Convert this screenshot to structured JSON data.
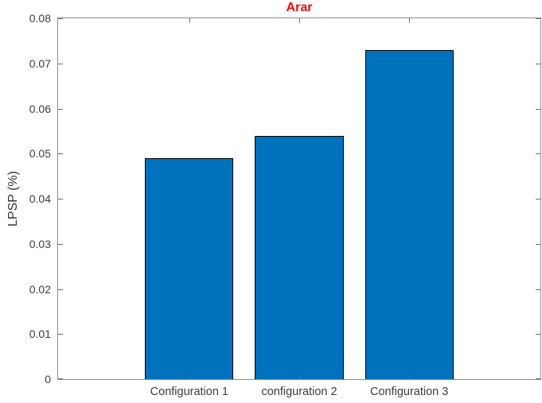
{
  "chart_data": {
    "type": "bar",
    "title": "Arar",
    "title_color": "#ff0000",
    "xlabel": "",
    "ylabel": "LPSP (%)",
    "categories": [
      "Configuration 1",
      "configuration 2",
      "Configuration 3"
    ],
    "values": [
      0.049,
      0.054,
      0.073
    ],
    "ylim": [
      0,
      0.08
    ],
    "ytick_step": 0.01,
    "ytick_labels": [
      "0",
      "0.01",
      "0.02",
      "0.03",
      "0.04",
      "0.05",
      "0.06",
      "0.07",
      "0.08"
    ],
    "bar_color": "#0072BD",
    "bar_edge_color": "#000000",
    "grid": false,
    "legend": null,
    "box": true,
    "tick_direction": "in",
    "bar_centers_frac": [
      0.272,
      0.5,
      0.728
    ],
    "bar_width_frac": 0.1835
  }
}
